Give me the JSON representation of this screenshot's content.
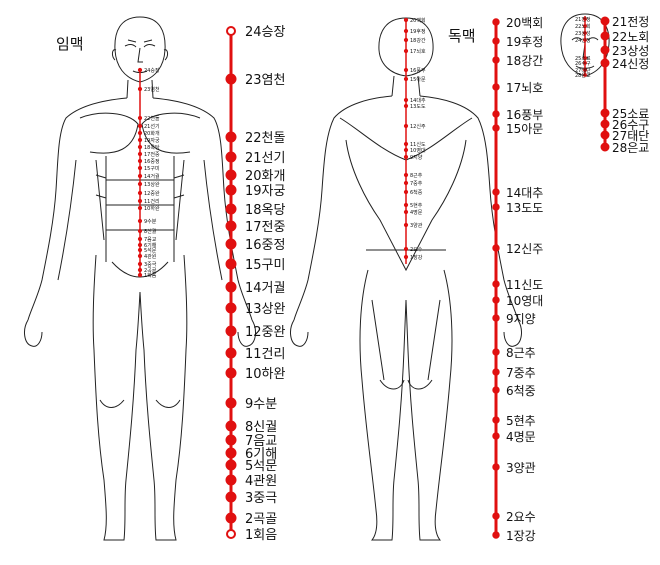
{
  "titles": {
    "ren": "임맥",
    "du": "독맥"
  },
  "colors": {
    "meridian": "#e01010",
    "outline": "#222222",
    "label": "#111111"
  },
  "ren_points": [
    "24승장",
    "23염천",
    "22천돌",
    "21선기",
    "20화개",
    "19자궁",
    "18옥당",
    "17전중",
    "16중정",
    "15구미",
    "14거궐",
    "13상완",
    "12중완",
    "11건리",
    "10하완",
    "9수분",
    "8신궐",
    "7음교",
    "6기해",
    "5석문",
    "4관원",
    "3중극",
    "2곡골",
    "1회음"
  ],
  "du_points": [
    "20백회",
    "19후정",
    "18강간",
    "17뇌호",
    "16풍부",
    "15아문",
    "14대추",
    "13도도",
    "12신주",
    "11신도",
    "10영대",
    "9지양",
    "8근추",
    "7중추",
    "6척중",
    "5현추",
    "4명문",
    "3양관",
    "2요수",
    "1장강"
  ],
  "du_face_points": [
    "21전정",
    "22노회",
    "23상성",
    "24신정",
    "25소료",
    "26수구",
    "27태단",
    "28은교"
  ]
}
